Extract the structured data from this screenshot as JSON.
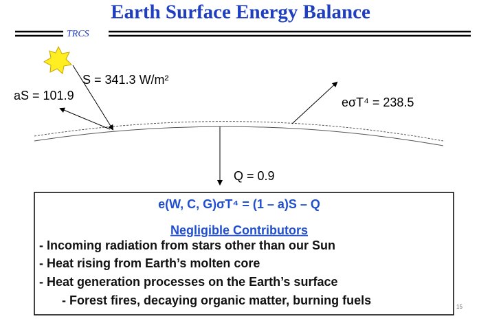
{
  "header": {
    "title": "Earth Surface Energy Balance",
    "tag": "TRCS"
  },
  "diagram": {
    "incoming": "S = 341.3 W/m²",
    "reflected": "aS = 101.9",
    "emitted": "eσT⁴ = 238.5",
    "ground": "Q = 0.9"
  },
  "box": {
    "equation": "e(W, C, G)σT⁴ = (1 – a)S – Q",
    "heading": "Negligible Contributors",
    "items": [
      "- Incoming radiation from stars other than our Sun",
      "- Heat rising from Earth’s molten core",
      "- Heat generation processes on the Earth’s surface",
      "-  Forest fires, decaying organic matter, burning fuels"
    ]
  },
  "page_number": "15"
}
